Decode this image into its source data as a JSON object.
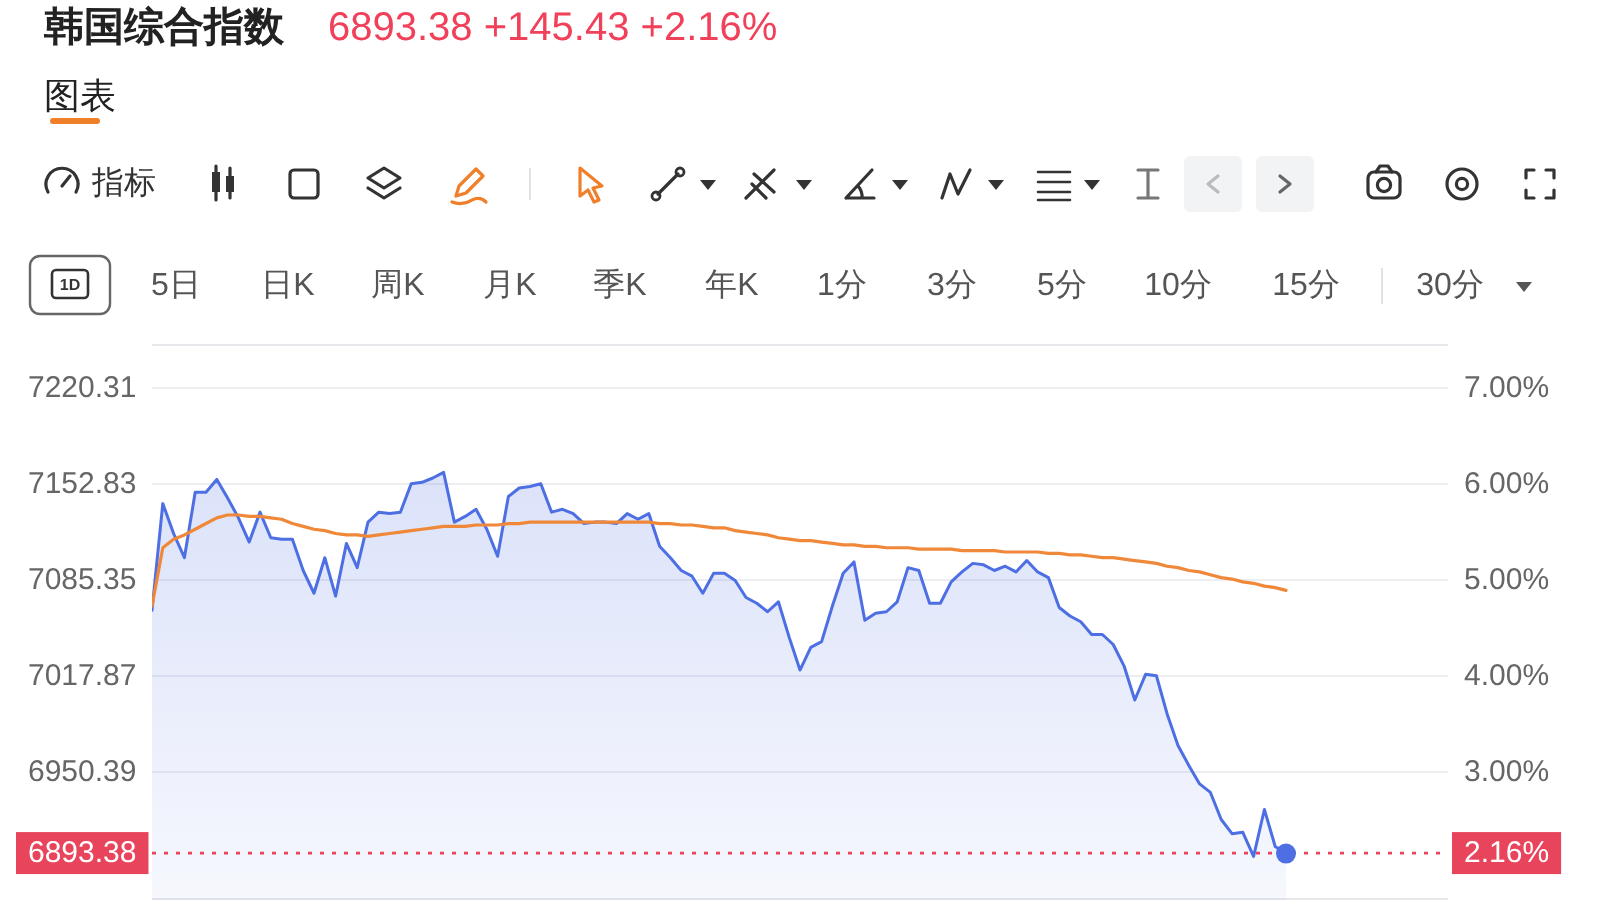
{
  "chart_data": {
    "type": "area",
    "title": "韩国综合指数",
    "subtitle": "6893.38 +145.43 +2.16%",
    "annotations": [
      "图表",
      "指标",
      "1D",
      "5日",
      "日K",
      "周K",
      "月K",
      "季K",
      "年K",
      "1分",
      "3分",
      "5分",
      "10分",
      "15分",
      "30分",
      "2.16%"
    ],
    "categories": [
      null,
      null,
      null,
      null,
      null,
      null,
      null,
      null,
      null,
      null,
      null,
      null,
      null,
      null,
      null,
      null,
      null,
      null,
      null,
      null,
      null,
      null,
      null,
      null,
      null,
      null,
      null,
      null,
      null,
      null,
      null,
      null,
      null,
      null,
      null,
      null,
      null,
      null,
      null,
      null,
      null,
      null,
      null,
      null,
      null,
      null,
      null,
      null,
      null,
      null,
      null,
      null,
      null,
      null,
      null,
      null,
      null,
      null,
      null,
      null,
      null,
      null,
      null,
      null,
      null,
      null,
      null,
      null,
      null,
      null,
      null,
      null,
      null,
      null,
      null,
      null,
      null,
      null,
      null,
      null,
      null,
      null,
      null,
      null,
      null,
      null,
      null,
      null,
      null,
      null,
      null,
      null,
      null,
      null,
      null,
      null,
      null,
      null,
      null,
      null,
      null,
      null,
      null,
      null,
      null,
      null,
      null,
      null,
      null,
      null,
      null,
      null,
      null,
      null,
      null,
      null,
      null,
      null,
      null,
      null,
      null
    ],
    "series": [
      {
        "color": "#4d6fe3",
        "values": [
          7064,
          7139,
          7118,
          7101,
          7147,
          7147,
          7156,
          7143,
          7129,
          7112,
          7133,
          7115,
          7114,
          7114,
          7092,
          7076,
          7101,
          7074,
          7111,
          7094,
          7126,
          7133,
          7132,
          7133,
          7153,
          7154,
          7157,
          7161,
          7126,
          7130,
          7135,
          7121,
          7102,
          7144,
          7150,
          7151,
          7153,
          7133,
          7135,
          7132,
          7125,
          7126,
          7126,
          7125,
          7132,
          7128,
          7132,
          7109,
          7101,
          7092,
          7088,
          7076,
          7090,
          7090,
          7085,
          7073,
          7069,
          7063,
          7070,
          7045,
          7022,
          7038,
          7042,
          7067,
          7090,
          7098,
          7057,
          7062,
          7063,
          7070,
          7094,
          7092,
          7069,
          7069,
          7084,
          7091,
          7097,
          7096,
          7092,
          7095,
          7091,
          7099,
          7091,
          7087,
          7066,
          7060,
          7056,
          7047,
          7047,
          7040,
          7025,
          7001,
          7019,
          7018,
          6991,
          6969,
          6955,
          6942,
          6936,
          6917,
          6907,
          6908,
          6891,
          6924,
          6898,
          6893,
          null,
          null,
          null,
          null,
          null,
          null,
          null,
          null,
          null,
          null,
          null,
          null,
          null,
          null,
          null
        ]
      },
      {
        "type": "line",
        "color": "#f0883a",
        "values": [
          7067,
          7108,
          7114,
          7117,
          7121,
          7125,
          7129,
          7131,
          7131,
          7130,
          7130,
          7129,
          7128,
          7125,
          7123,
          7121,
          7120,
          7118,
          7117,
          7117,
          7116,
          7117,
          7118,
          7119,
          7120,
          7121,
          7122,
          7123,
          7123,
          7123,
          7124,
          7124,
          7124,
          7125,
          7125,
          7126,
          7126,
          7126,
          7126,
          7126,
          7126,
          7126,
          7126,
          7126,
          7126,
          7126,
          7126,
          7125,
          7125,
          7124,
          7124,
          7123,
          7122,
          7122,
          7120,
          7119,
          7118,
          7117,
          7115,
          7114,
          7113,
          7113,
          7112,
          7111,
          7110,
          7110,
          7109,
          7109,
          7108,
          7108,
          7108,
          7107,
          7107,
          7107,
          7107,
          7106,
          7106,
          7106,
          7106,
          7105,
          7105,
          7105,
          7105,
          7104,
          7104,
          7103,
          7103,
          7102,
          7101,
          7101,
          7100,
          7099,
          7098,
          7097,
          7095,
          7094,
          7092,
          7091,
          7089,
          7087,
          7086,
          7084,
          7083,
          7081,
          7080,
          7078,
          null,
          null,
          null,
          null,
          null,
          null,
          null,
          null,
          null,
          null,
          null,
          null,
          null,
          null,
          null
        ]
      },
      {
        "type": "scatter",
        "color": "#4d6fe3",
        "values": [
          null,
          null,
          null,
          null,
          null,
          null,
          null,
          null,
          null,
          null,
          null,
          null,
          null,
          null,
          null,
          null,
          null,
          null,
          null,
          null,
          null,
          null,
          null,
          null,
          null,
          null,
          null,
          null,
          null,
          null,
          null,
          null,
          null,
          null,
          null,
          null,
          null,
          null,
          null,
          null,
          null,
          null,
          null,
          null,
          null,
          null,
          null,
          null,
          null,
          null,
          null,
          null,
          null,
          null,
          null,
          null,
          null,
          null,
          null,
          null,
          null,
          null,
          null,
          null,
          null,
          null,
          null,
          null,
          null,
          null,
          null,
          null,
          null,
          null,
          null,
          null,
          null,
          null,
          null,
          null,
          null,
          null,
          null,
          null,
          null,
          null,
          null,
          null,
          null,
          null,
          null,
          null,
          null,
          null,
          null,
          null,
          null,
          null,
          null,
          null,
          null,
          null,
          null,
          null,
          null,
          6893,
          null,
          null,
          null,
          null,
          null,
          null,
          null,
          null,
          null,
          null,
          null,
          null,
          null,
          null,
          null
        ]
      }
    ],
    "ylim": [
      6860.4,
      7251.2
    ],
    "yticks": [
      6950.39,
      7017.87,
      7085.35,
      7152.83,
      7220.31
    ],
    "y2lim": [
      1.67,
      7.46
    ],
    "y2ticks": [
      {
        "value": 3,
        "label": "3.00%"
      },
      {
        "value": 4,
        "label": "4.00%"
      },
      {
        "value": 5,
        "label": "5.00%"
      },
      {
        "value": 6,
        "label": "6.00%"
      },
      {
        "value": 7,
        "label": "7.00%"
      }
    ],
    "ref_lines": [
      {
        "axis": "y",
        "value": 6893.38,
        "label": "6893.38",
        "color": "#e8455d",
        "line_style": "dotted"
      }
    ],
    "grid": "y"
  }
}
